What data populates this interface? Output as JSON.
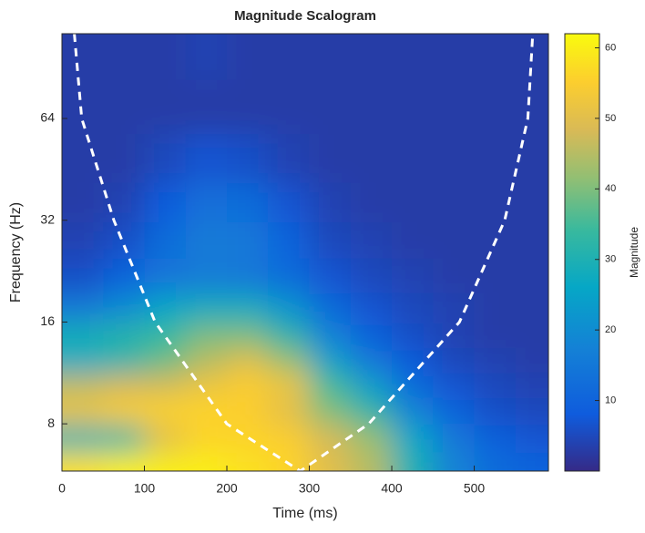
{
  "chart_data": {
    "type": "heatmap",
    "title": "Magnitude Scalogram",
    "x_label": "Time (ms)",
    "y_label": "Frequency (Hz)",
    "colorbar_label": "Magnitude",
    "colormap": "parula",
    "xlim": [
      0,
      590
    ],
    "xticks": [
      0,
      100,
      200,
      300,
      400,
      500
    ],
    "ylim": [
      5.8,
      114
    ],
    "ylog": true,
    "yticks": [
      8,
      16,
      32,
      64
    ],
    "clim": [
      0,
      62
    ],
    "cticks": [
      10,
      20,
      30,
      40,
      50,
      60
    ],
    "x": [
      25,
      75,
      125,
      175,
      225,
      275,
      325,
      375,
      425,
      475,
      525,
      575
    ],
    "y": [
      6,
      7.3,
      8.8,
      10.5,
      12.3,
      14.5,
      17.5,
      22,
      28,
      36,
      48,
      70,
      100
    ],
    "z": [
      [
        58,
        60,
        60,
        60,
        58,
        56,
        50,
        45,
        30,
        18,
        12,
        10
      ],
      [
        30,
        32,
        50,
        56,
        56,
        55,
        48,
        42,
        26,
        15,
        9,
        7
      ],
      [
        52,
        55,
        56,
        56,
        55,
        50,
        40,
        32,
        18,
        10,
        6,
        5
      ],
      [
        46,
        48,
        48,
        52,
        55,
        52,
        35,
        24,
        12,
        7,
        5,
        4
      ],
      [
        26,
        30,
        38,
        45,
        50,
        42,
        25,
        15,
        8,
        5,
        4,
        3
      ],
      [
        30,
        32,
        34,
        40,
        40,
        32,
        18,
        10,
        6,
        4,
        3,
        3
      ],
      [
        16,
        20,
        26,
        28,
        28,
        22,
        12,
        7,
        5,
        4,
        3,
        3
      ],
      [
        6,
        10,
        14,
        16,
        15,
        12,
        7,
        5,
        4,
        3,
        3,
        3
      ],
      [
        4,
        6,
        12,
        16,
        15,
        10,
        5,
        4,
        3,
        3,
        3,
        3
      ],
      [
        3,
        4,
        8,
        13,
        12,
        7,
        4,
        3,
        3,
        3,
        3,
        3
      ],
      [
        3,
        3,
        5,
        7,
        6,
        4,
        3,
        3,
        3,
        3,
        3,
        3
      ],
      [
        3,
        3,
        3,
        3,
        3,
        3,
        3,
        3,
        3,
        3,
        3,
        3
      ],
      [
        3,
        3,
        3,
        4,
        3,
        3,
        3,
        3,
        3,
        3,
        3,
        3
      ]
    ],
    "coi": {
      "color": "#ffffff",
      "x": [
        15,
        24,
        63,
        113,
        200,
        289,
        372,
        482,
        537,
        565,
        571
      ],
      "y": [
        114,
        64,
        32,
        16,
        8,
        5.8,
        8,
        16,
        32,
        64,
        114
      ]
    }
  }
}
